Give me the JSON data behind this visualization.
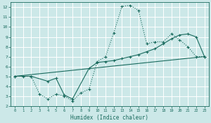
{
  "xlabel": "Humidex (Indice chaleur)",
  "xlim": [
    -0.5,
    23.5
  ],
  "ylim": [
    2,
    12.5
  ],
  "yticks": [
    2,
    3,
    4,
    5,
    6,
    7,
    8,
    9,
    10,
    11,
    12
  ],
  "xticks": [
    0,
    1,
    2,
    3,
    4,
    5,
    6,
    7,
    8,
    9,
    10,
    11,
    12,
    13,
    14,
    15,
    16,
    17,
    18,
    19,
    20,
    21,
    22,
    23
  ],
  "background_color": "#cce8e8",
  "grid_color": "#b0d8d8",
  "line_color": "#1a6b5e",
  "line1_x": [
    0,
    1,
    2,
    3,
    4,
    5,
    6,
    7,
    8,
    9,
    10,
    11,
    12,
    13,
    14,
    15,
    16,
    17,
    18,
    19,
    20,
    21,
    22,
    23
  ],
  "line1_y": [
    5.0,
    5.0,
    5.0,
    3.2,
    2.7,
    3.2,
    3.0,
    2.5,
    3.3,
    3.7,
    6.5,
    7.0,
    9.4,
    12.1,
    12.2,
    11.7,
    8.3,
    8.5,
    8.5,
    9.3,
    8.7,
    8.0,
    7.0,
    7.0
  ],
  "line2_x": [
    0,
    2,
    4,
    5,
    6,
    7,
    9,
    10,
    11,
    12,
    13,
    14,
    15,
    16,
    17,
    18,
    19,
    20,
    21,
    22,
    23
  ],
  "line2_y": [
    5.0,
    5.0,
    4.5,
    4.8,
    3.1,
    2.7,
    5.8,
    6.4,
    6.5,
    6.6,
    6.8,
    7.0,
    7.2,
    7.5,
    7.8,
    8.3,
    8.8,
    9.2,
    9.3,
    9.0,
    7.0
  ],
  "line3_x": [
    0,
    23
  ],
  "line3_y": [
    5.0,
    7.0
  ]
}
